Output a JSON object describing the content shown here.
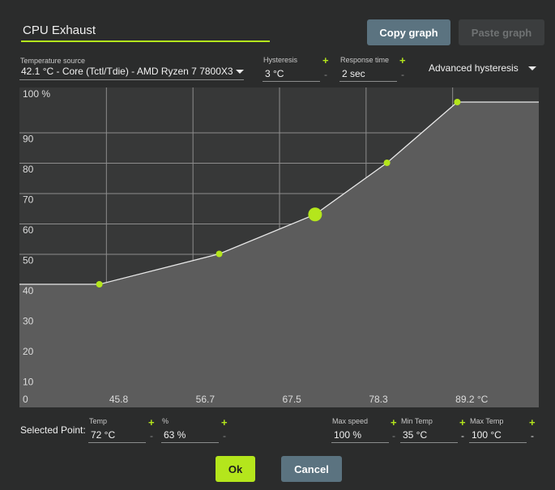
{
  "header": {
    "title": "CPU Exhaust",
    "copy_label": "Copy graph",
    "paste_label": "Paste graph"
  },
  "source": {
    "label": "Temperature source",
    "value": "42.1 °C - Core (Tctl/Tdie) - AMD Ryzen 7 7800X3"
  },
  "hysteresis": {
    "label": "Hysteresis",
    "value": "3 °C",
    "plus": "+",
    "minus": "-"
  },
  "response_time": {
    "label": "Response time",
    "value": "2 sec",
    "plus": "+",
    "minus": "-"
  },
  "advanced": {
    "label": "Advanced hysteresis"
  },
  "chart_data": {
    "type": "line",
    "x_ticks": [
      "0",
      "45.8",
      "56.7",
      "67.5",
      "78.3",
      "89.2 °C"
    ],
    "y_ticks": [
      "100 %",
      "90",
      "80",
      "70",
      "60",
      "50",
      "40",
      "30",
      "20",
      "10"
    ],
    "xlim": [
      35,
      100
    ],
    "ylim": [
      0,
      100
    ],
    "grid": true,
    "points": [
      {
        "x": 45,
        "y": 40
      },
      {
        "x": 60,
        "y": 50
      },
      {
        "x": 72,
        "y": 63,
        "selected": true
      },
      {
        "x": 81,
        "y": 80
      },
      {
        "x": 89.8,
        "y": 100
      }
    ],
    "colors": {
      "point": "#b4e61c",
      "line": "#e8e8e8",
      "fill": "#5c5c5c",
      "background": "#373838",
      "grid": "#8d8d8d"
    }
  },
  "selected": {
    "label": "Selected Point:",
    "temp_label": "Temp",
    "temp_value": "72 °C",
    "pct_label": "%",
    "pct_value": "63 %",
    "max_speed_label": "Max speed",
    "max_speed_value": "100 %",
    "min_temp_label": "Min Temp",
    "min_temp_value": "35 °C",
    "max_temp_label": "Max Temp",
    "max_temp_value": "100 °C",
    "plus": "+",
    "minus": "-"
  },
  "footer": {
    "ok_label": "Ok",
    "cancel_label": "Cancel"
  }
}
